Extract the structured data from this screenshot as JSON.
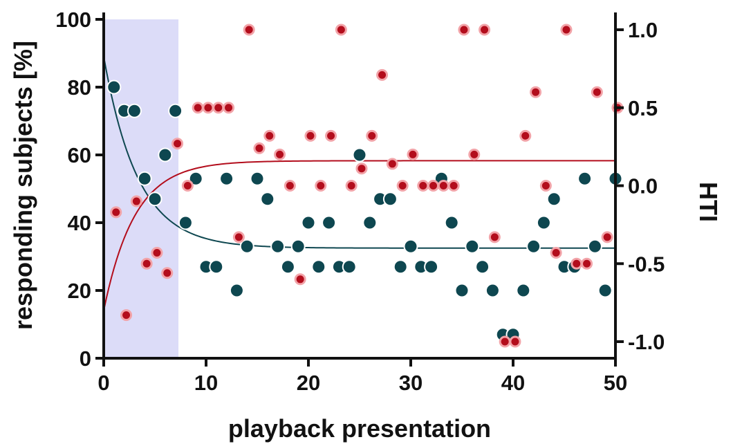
{
  "chart_data": {
    "type": "scatter",
    "xlabel": "playback presentation",
    "ylabel_left": "responding subjects [%]",
    "ylabel_right": "HTI",
    "xlim": [
      0,
      50
    ],
    "ylim_left": [
      0,
      100
    ],
    "ylim_right": [
      -1.1,
      1.1
    ],
    "x_ticks": [
      0,
      10,
      20,
      30,
      40,
      50
    ],
    "y_left_ticks": [
      0,
      20,
      40,
      60,
      80,
      100
    ],
    "y_right_ticks": [
      "1.0",
      "0.5",
      "0.0",
      "-0.5",
      "-1.0"
    ],
    "y_right_tick_values": [
      1.0,
      0.5,
      0.0,
      -0.5,
      -1.0
    ],
    "shaded_region": {
      "x_start": 0,
      "x_end": 7.3,
      "color": "#dcdcf8"
    },
    "colors": {
      "responding": "#0e4750",
      "hti": "#b30d1c",
      "hti_edge": "#f2a3a8",
      "resp_edge": "#ffffff"
    },
    "series": [
      {
        "axis": "left",
        "points": [
          [
            1,
            80
          ],
          [
            2,
            73
          ],
          [
            3,
            73
          ],
          [
            4,
            53
          ],
          [
            5,
            47
          ],
          [
            6,
            60
          ],
          [
            7,
            73
          ],
          [
            8,
            40
          ],
          [
            9,
            53
          ],
          [
            10,
            27
          ],
          [
            11,
            27
          ],
          [
            12,
            53
          ],
          [
            13,
            20
          ],
          [
            14,
            33
          ],
          [
            15,
            53
          ],
          [
            16,
            47
          ],
          [
            17,
            33
          ],
          [
            18,
            27
          ],
          [
            19,
            33
          ],
          [
            20,
            40
          ],
          [
            21,
            27
          ],
          [
            22,
            40
          ],
          [
            23,
            27
          ],
          [
            24,
            27
          ],
          [
            25,
            60
          ],
          [
            26,
            40
          ],
          [
            27,
            47
          ],
          [
            28,
            47
          ],
          [
            29,
            27
          ],
          [
            30,
            33
          ],
          [
            31,
            27
          ],
          [
            32,
            27
          ],
          [
            33,
            53
          ],
          [
            34,
            40
          ],
          [
            35,
            20
          ],
          [
            36,
            33
          ],
          [
            37,
            27
          ],
          [
            38,
            20
          ],
          [
            39,
            7
          ],
          [
            40,
            7
          ],
          [
            41,
            20
          ],
          [
            42,
            33
          ],
          [
            43,
            40
          ],
          [
            44,
            47
          ],
          [
            45,
            27
          ],
          [
            46,
            27
          ],
          [
            47,
            53
          ],
          [
            48,
            33
          ],
          [
            49,
            20
          ],
          [
            50,
            53
          ]
        ],
        "fit": {
          "plateau": 32.5,
          "y0": 89,
          "k": 0.3
        }
      },
      {
        "axis": "right",
        "points": [
          [
            1.2,
            -0.17
          ],
          [
            2.2,
            -0.83
          ],
          [
            3.2,
            -0.1
          ],
          [
            4.2,
            -0.5
          ],
          [
            5.2,
            -0.43
          ],
          [
            6.2,
            -0.56
          ],
          [
            7.2,
            0.27
          ],
          [
            8.2,
            0.0
          ],
          [
            9.2,
            0.5
          ],
          [
            10.2,
            0.5
          ],
          [
            11.2,
            0.5
          ],
          [
            12.2,
            0.5
          ],
          [
            13.2,
            -0.33
          ],
          [
            14.2,
            1.0
          ],
          [
            15.2,
            0.24
          ],
          [
            16.2,
            0.32
          ],
          [
            17.2,
            0.2
          ],
          [
            18.2,
            0.0
          ],
          [
            19.2,
            -0.6
          ],
          [
            20.2,
            0.32
          ],
          [
            21.2,
            0.0
          ],
          [
            22.2,
            0.32
          ],
          [
            23.2,
            1.0
          ],
          [
            24.2,
            0.0
          ],
          [
            25.2,
            0.11
          ],
          [
            26.2,
            0.32
          ],
          [
            27.2,
            0.71
          ],
          [
            28.2,
            0.14
          ],
          [
            29.2,
            0.0
          ],
          [
            30.2,
            0.2
          ],
          [
            31.2,
            0.0
          ],
          [
            32.2,
            0.0
          ],
          [
            33.2,
            0.0
          ],
          [
            34.2,
            0.0
          ],
          [
            35.2,
            1.0
          ],
          [
            36.2,
            0.2
          ],
          [
            37.2,
            1.0
          ],
          [
            38.2,
            -0.33
          ],
          [
            39.2,
            -1.0
          ],
          [
            40.2,
            -1.0
          ],
          [
            41.2,
            0.32
          ],
          [
            42.2,
            0.6
          ],
          [
            43.2,
            0.0
          ],
          [
            44.2,
            -0.43
          ],
          [
            45.2,
            1.0
          ],
          [
            46.2,
            -0.5
          ],
          [
            47.2,
            -0.5
          ],
          [
            48.2,
            0.6
          ],
          [
            49.2,
            -0.33
          ],
          [
            50.2,
            0.5
          ]
        ],
        "fit": {
          "plateau": 0.16,
          "y0": -0.8,
          "k": 0.33
        }
      }
    ]
  }
}
